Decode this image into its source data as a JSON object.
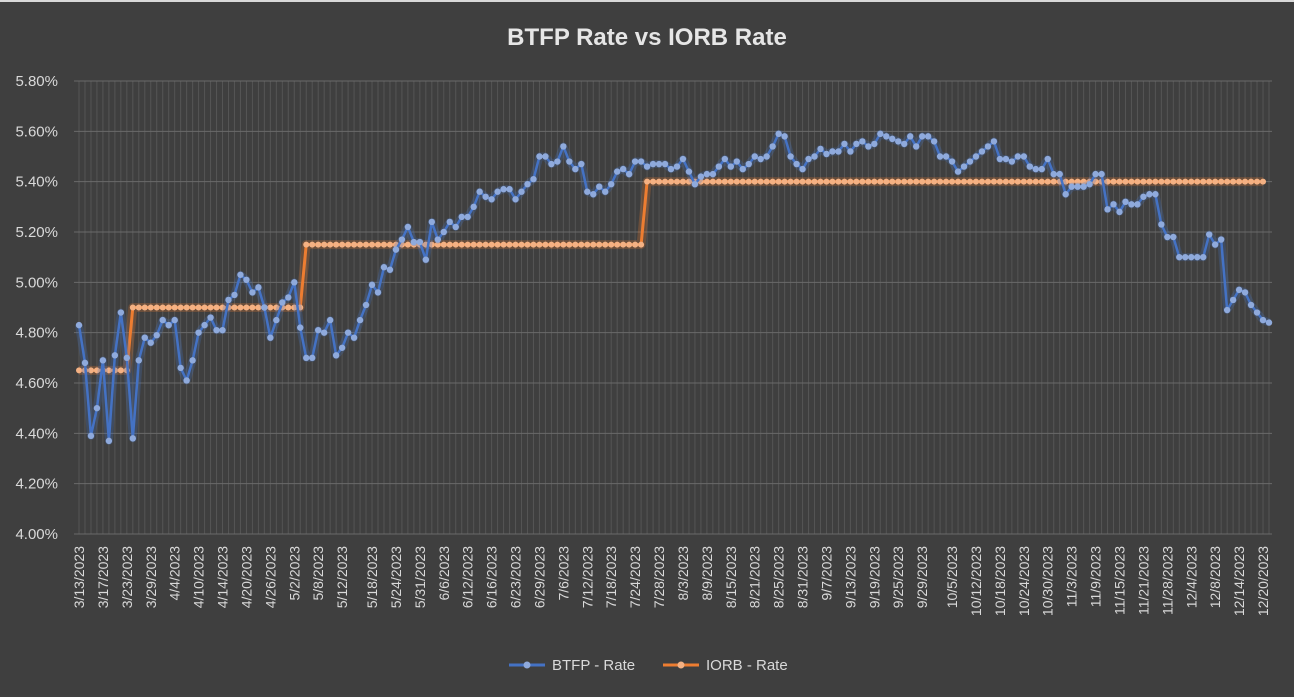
{
  "chart_data": {
    "type": "line",
    "title": "BTFP Rate vs IORB Rate",
    "xlabel": "",
    "ylabel": "",
    "ylim": [
      4.0,
      5.8
    ],
    "y_ticks": [
      "4.00%",
      "4.20%",
      "4.40%",
      "4.60%",
      "4.80%",
      "5.00%",
      "5.20%",
      "5.40%",
      "5.60%",
      "5.80%"
    ],
    "x_tick_labels": [
      "3/13/2023",
      "3/17/2023",
      "3/23/2023",
      "3/29/2023",
      "4/4/2023",
      "4/10/2023",
      "4/14/2023",
      "4/20/2023",
      "4/26/2023",
      "5/2/2023",
      "5/8/2023",
      "5/12/2023",
      "5/18/2023",
      "5/24/2023",
      "5/31/2023",
      "6/6/2023",
      "6/12/2023",
      "6/16/2023",
      "6/23/2023",
      "6/29/2023",
      "7/6/2023",
      "7/12/2023",
      "7/18/2023",
      "7/24/2023",
      "7/28/2023",
      "8/3/2023",
      "8/9/2023",
      "8/15/2023",
      "8/21/2023",
      "8/25/2023",
      "8/31/2023",
      "9/7/2023",
      "9/13/2023",
      "9/19/2023",
      "9/25/2023",
      "9/29/2023",
      "10/5/2023",
      "10/12/2023",
      "10/18/2023",
      "10/24/2023",
      "10/30/2023",
      "11/3/2023",
      "11/9/2023",
      "11/15/2023",
      "11/21/2023",
      "11/28/2023",
      "12/4/2023",
      "12/8/2023",
      "12/14/2023",
      "12/20/2023"
    ],
    "grid": true,
    "legend_position": "bottom",
    "series": [
      {
        "name": "BTFP - Rate",
        "color": "#4472c4",
        "values": [
          4.83,
          4.68,
          4.39,
          4.5,
          4.69,
          4.37,
          4.71,
          4.88,
          4.7,
          4.38,
          4.69,
          4.78,
          4.76,
          4.79,
          4.85,
          4.83,
          4.85,
          4.66,
          4.61,
          4.69,
          4.8,
          4.83,
          4.86,
          4.81,
          4.81,
          4.93,
          4.95,
          5.03,
          5.01,
          4.96,
          4.98,
          4.9,
          4.78,
          4.85,
          4.92,
          4.94,
          5.0,
          4.82,
          4.7,
          4.7,
          4.81,
          4.8,
          4.85,
          4.71,
          4.74,
          4.8,
          4.78,
          4.85,
          4.91,
          4.99,
          4.96,
          5.06,
          5.05,
          5.13,
          5.17,
          5.22,
          5.16,
          5.16,
          5.09,
          5.24,
          5.17,
          5.2,
          5.24,
          5.22,
          5.26,
          5.26,
          5.3,
          5.36,
          5.34,
          5.33,
          5.36,
          5.37,
          5.37,
          5.33,
          5.36,
          5.39,
          5.41,
          5.5,
          5.5,
          5.47,
          5.48,
          5.54,
          5.48,
          5.45,
          5.47,
          5.36,
          5.35,
          5.38,
          5.36,
          5.39,
          5.44,
          5.45,
          5.43,
          5.48,
          5.48,
          5.46,
          5.47,
          5.47,
          5.47,
          5.45,
          5.46,
          5.49,
          5.44,
          5.39,
          5.42,
          5.43,
          5.43,
          5.46,
          5.49,
          5.46,
          5.48,
          5.45,
          5.47,
          5.5,
          5.49,
          5.5,
          5.54,
          5.59,
          5.58,
          5.5,
          5.47,
          5.45,
          5.49,
          5.5,
          5.53,
          5.51,
          5.52,
          5.52,
          5.55,
          5.52,
          5.55,
          5.56,
          5.54,
          5.55,
          5.59,
          5.58,
          5.57,
          5.56,
          5.55,
          5.58,
          5.54,
          5.58,
          5.58,
          5.56,
          5.5,
          5.5,
          5.48,
          5.44,
          5.46,
          5.48,
          5.5,
          5.52,
          5.54,
          5.56,
          5.49,
          5.49,
          5.48,
          5.5,
          5.5,
          5.46,
          5.45,
          5.45,
          5.49,
          5.43,
          5.43,
          5.35,
          5.38,
          5.38,
          5.38,
          5.39,
          5.43,
          5.43,
          5.29,
          5.31,
          5.28,
          5.32,
          5.31,
          5.31,
          5.34,
          5.35,
          5.35,
          5.23,
          5.18,
          5.18,
          5.1,
          5.1,
          5.1,
          5.1,
          5.1,
          5.19,
          5.15,
          5.17,
          4.89,
          4.93,
          4.97,
          4.96,
          4.91,
          4.88,
          4.85,
          4.84
        ]
      },
      {
        "name": "IORB - Rate",
        "color": "#ed7d31",
        "steps": [
          {
            "count": 9,
            "value": 4.65
          },
          {
            "count": 29,
            "value": 4.9
          },
          {
            "count": 57,
            "value": 5.15
          },
          {
            "count": 104,
            "value": 5.4
          }
        ]
      }
    ]
  }
}
